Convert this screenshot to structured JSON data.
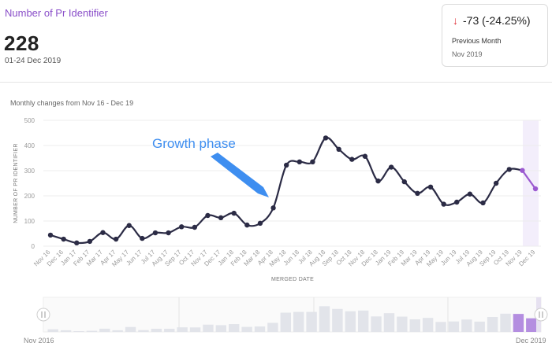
{
  "header": {
    "title": "Number of Pr Identifier",
    "value": "228",
    "date_range": "01-24 Dec 2019"
  },
  "comparison": {
    "arrow": "↓",
    "delta": "-73 (-24.25%)",
    "label": "Previous Month",
    "period": "Nov 2019"
  },
  "subtitle": "Monthly changes from Nov 16 - Dec 19",
  "annotation": "Growth phase",
  "navigator": {
    "start_label": "Nov 2016",
    "end_label": "Dec 2019"
  },
  "colors": {
    "line": "#2b2b45",
    "highlight": "#9b59d0",
    "annotation": "#3e8ef0",
    "down": "#e0323a"
  },
  "chart_data": {
    "type": "line",
    "xlabel": "MERGED DATE",
    "ylabel": "NUMBER OF PR IDENTIFIER",
    "ylim": [
      0,
      500
    ],
    "yticks": [
      0,
      100,
      200,
      300,
      400,
      500
    ],
    "grid": true,
    "categories": [
      "Nov 16",
      "Dec 16",
      "Jan 17",
      "Feb 17",
      "Mar 17",
      "Apr 17",
      "May 17",
      "Jun 17",
      "Jul 17",
      "Aug 17",
      "Sep 17",
      "Oct 17",
      "Nov 17",
      "Dec 17",
      "Jan 18",
      "Feb 18",
      "Mar 18",
      "Apr 18",
      "May 18",
      "Jun 18",
      "Jul 18",
      "Aug 18",
      "Sep 18",
      "Oct 18",
      "Nov 18",
      "Dec 18",
      "Jan 19",
      "Feb 19",
      "Mar 19",
      "Apr 19",
      "May 19",
      "Jun 19",
      "Jul 19",
      "Aug 19",
      "Sep 19",
      "Oct 19",
      "Nov 19",
      "Dec 19"
    ],
    "series": [
      {
        "values": [
          44,
          28,
          13,
          19,
          54,
          28,
          82,
          31,
          53,
          53,
          77,
          75,
          122,
          113,
          131,
          84,
          91,
          152,
          322,
          335,
          335,
          430,
          385,
          345,
          357,
          259,
          314,
          256,
          210,
          235,
          167,
          175,
          207,
          172,
          250,
          305,
          301,
          228
        ],
        "highlight_from_index": 36
      }
    ]
  }
}
